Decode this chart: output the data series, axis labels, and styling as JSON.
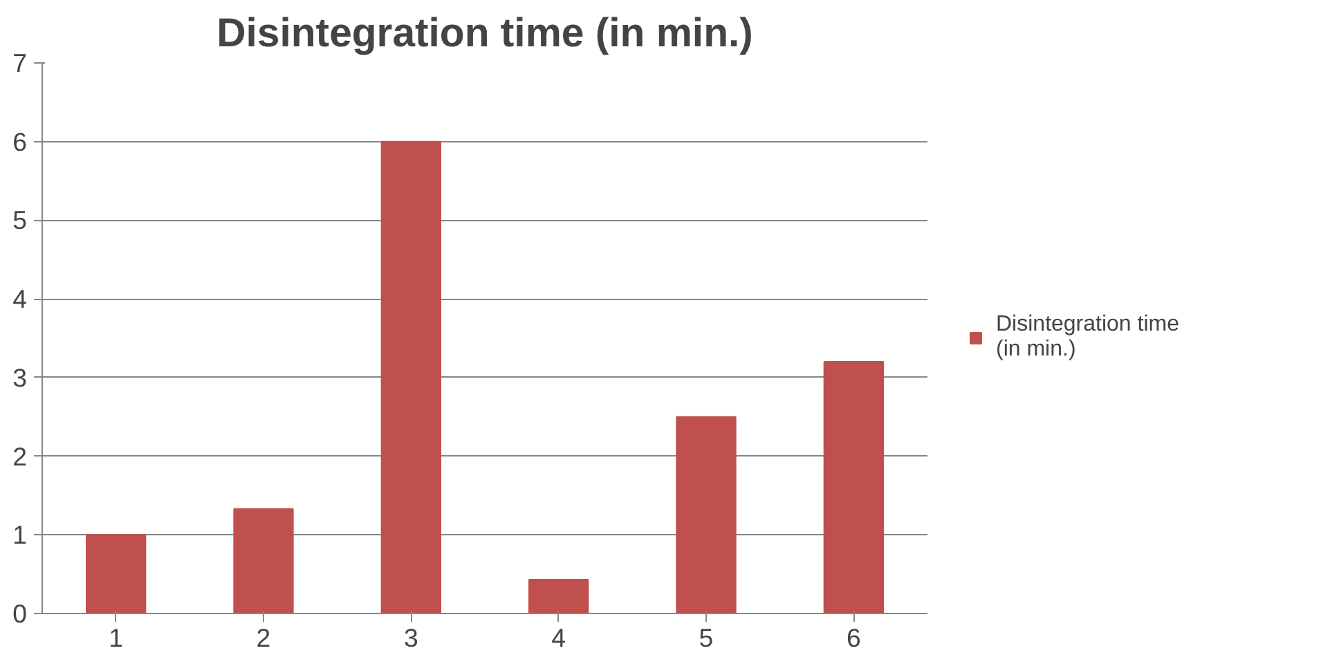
{
  "chart_data": {
    "type": "bar",
    "title": "Disintegration time (in min.)",
    "categories": [
      "1",
      "2",
      "3",
      "4",
      "5",
      "6"
    ],
    "series": [
      {
        "name": "Disintegration time (in min.)",
        "color": "#c0504d",
        "values": [
          1.0,
          1.33,
          6.0,
          0.43,
          2.5,
          3.2
        ]
      }
    ],
    "ylim": [
      0,
      7
    ],
    "yticks": [
      0,
      1,
      2,
      3,
      4,
      5,
      6,
      7
    ],
    "grid": "y",
    "legend": "right"
  }
}
